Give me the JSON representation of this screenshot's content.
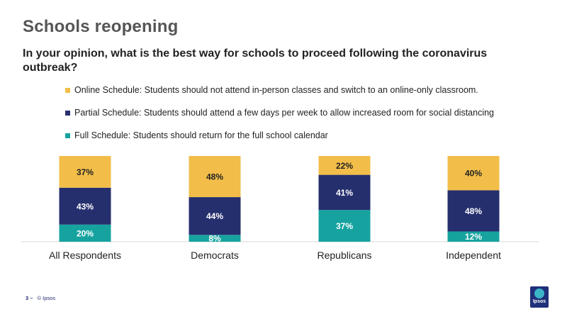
{
  "page": {
    "title": "Schools reopening",
    "question": "In your opinion, what is the best way for schools to proceed following the coronavirus outbreak?"
  },
  "footer": {
    "page_number": "3 –",
    "copyright": "© Ipsos"
  },
  "logo": {
    "text": "Ipsos"
  },
  "colors": {
    "online": "#f2be49",
    "partial": "#262f6e",
    "full": "#16a39f"
  },
  "chart_data": {
    "type": "bar",
    "stacked": true,
    "categories": [
      "All Respondents",
      "Democrats",
      "Republicans",
      "Independent"
    ],
    "series": [
      {
        "name": "Full Schedule: Students should return for the full school calendar",
        "key": "full",
        "values": [
          20,
          8,
          37,
          12
        ],
        "labels": [
          "20%",
          "8%",
          "37%",
          "12%"
        ]
      },
      {
        "name": "Partial Schedule: Students should attend a few days per week to allow increased room for social distancing",
        "key": "partial",
        "values": [
          43,
          44,
          41,
          48
        ],
        "labels": [
          "43%",
          "44%",
          "41%",
          "48%"
        ]
      },
      {
        "name": "Online Schedule: Students should not attend in-person classes and switch to an online-only classroom.",
        "key": "online",
        "values": [
          37,
          48,
          22,
          40
        ],
        "labels": [
          "37%",
          "48%",
          "22%",
          "40%"
        ]
      }
    ],
    "legend_order": [
      "online",
      "partial",
      "full"
    ],
    "legend_position": "top",
    "ylim": [
      0,
      100
    ],
    "grid": false
  }
}
